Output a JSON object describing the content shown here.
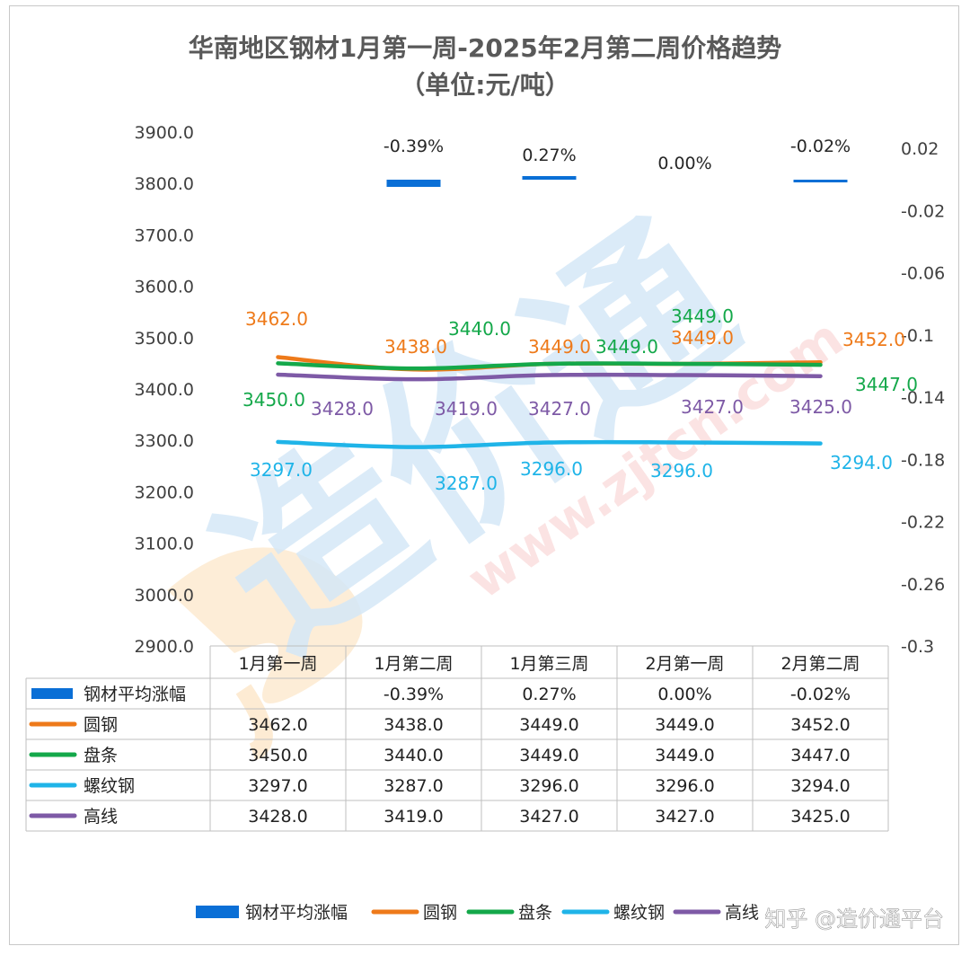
{
  "chart_data": {
    "type": "line",
    "title": "华南地区钢材1月第一周-2025年2月第二周价格趋势",
    "subtitle": "（单位:元/吨）",
    "categories": [
      "1月第一周",
      "1月第二周",
      "1月第三周",
      "2月第一周",
      "2月第二周"
    ],
    "y_left": {
      "min": 2900,
      "max": 3900,
      "step": 100,
      "tick_labels": [
        "3900.0",
        "3800.0",
        "3700.0",
        "3600.0",
        "3500.0",
        "3400.0",
        "3300.0",
        "3200.0",
        "3100.0",
        "3000.0",
        "2900.0"
      ]
    },
    "y_right": {
      "min": -0.3,
      "max": 0.02,
      "tick_labels": [
        "0.02",
        "-0.02",
        "-0.06",
        "-0.1",
        "-0.14",
        "-0.18",
        "-0.22",
        "-0.26",
        "-0.3"
      ],
      "tick_values": [
        0.02,
        -0.02,
        -0.06,
        -0.1,
        -0.14,
        -0.18,
        -0.22,
        -0.26,
        -0.3
      ]
    },
    "bar_series": {
      "name": "钢材平均涨幅",
      "values": [
        null,
        -0.39,
        0.27,
        0.0,
        -0.02
      ],
      "labels": [
        "",
        "-0.39%",
        "0.27%",
        "0.00%",
        "-0.02%"
      ],
      "color": "#0a6fd6"
    },
    "series": [
      {
        "name": "圆钢",
        "color": "#ee7a1a",
        "values": [
          3462.0,
          3438.0,
          3449.0,
          3449.0,
          3452.0
        ],
        "labels": [
          "3462.0",
          "3438.0",
          "3449.0",
          "3449.0",
          "3452.0"
        ]
      },
      {
        "name": "盘条",
        "color": "#14a84a",
        "values": [
          3450.0,
          3440.0,
          3449.0,
          3449.0,
          3447.0
        ],
        "labels": [
          "3450.0",
          "3440.0",
          "3449.0",
          "3449.0",
          "3447.0"
        ]
      },
      {
        "name": "螺纹钢",
        "color": "#1fb4e8",
        "values": [
          3297.0,
          3287.0,
          3296.0,
          3296.0,
          3294.0
        ],
        "labels": [
          "3297.0",
          "3287.0",
          "3296.0",
          "3296.0",
          "3294.0"
        ]
      },
      {
        "name": "高线",
        "color": "#7e5aa6",
        "values": [
          3428.0,
          3419.0,
          3427.0,
          3427.0,
          3425.0
        ],
        "labels": [
          "3428.0",
          "3419.0",
          "3427.0",
          "3427.0",
          "3425.0"
        ]
      }
    ],
    "legend_position": "bottom",
    "data_table": true
  },
  "watermark": {
    "site_text": "www.zjtcn.com",
    "logo_text": "造价通",
    "footer_text": "知乎 @造价通平台",
    "colors": {
      "blue": "#d5e8f7",
      "red": "#fbe0e0",
      "orange": "#fdebd3"
    }
  }
}
